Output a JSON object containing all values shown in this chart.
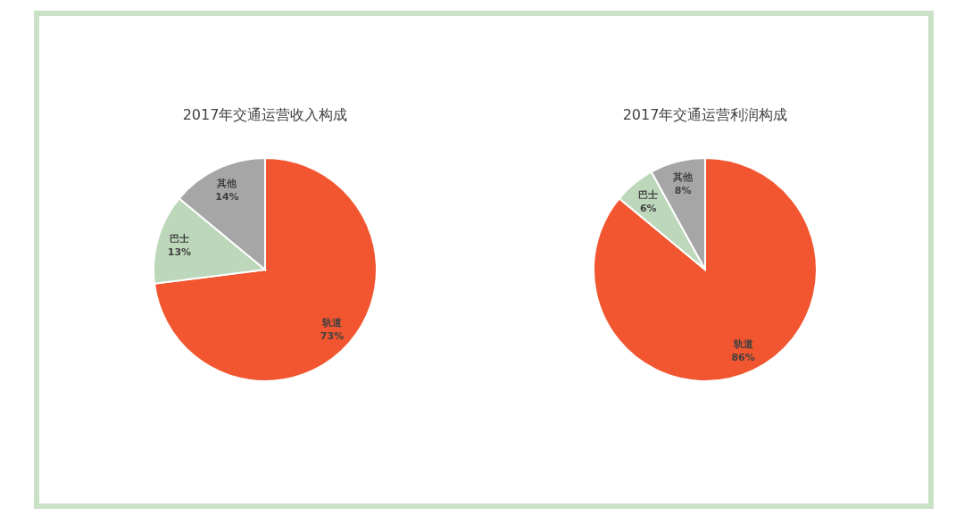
{
  "chart_data": [
    {
      "type": "pie",
      "title": "2017年交通运营收入构成",
      "categories": [
        "轨道",
        "巴士",
        "其他"
      ],
      "values": [
        73,
        13,
        14
      ],
      "colors": [
        "#f15630",
        "#bdd7bb",
        "#a6a6a6"
      ],
      "value_labels": [
        "73%",
        "13%",
        "14%"
      ]
    },
    {
      "type": "pie",
      "title": "2017年交通运营利润构成",
      "categories": [
        "轨道",
        "巴士",
        "其他"
      ],
      "values": [
        86,
        6,
        8
      ],
      "colors": [
        "#f15630",
        "#bdd7bb",
        "#a6a6a6"
      ],
      "value_labels": [
        "86%",
        "6%",
        "8%"
      ]
    }
  ]
}
